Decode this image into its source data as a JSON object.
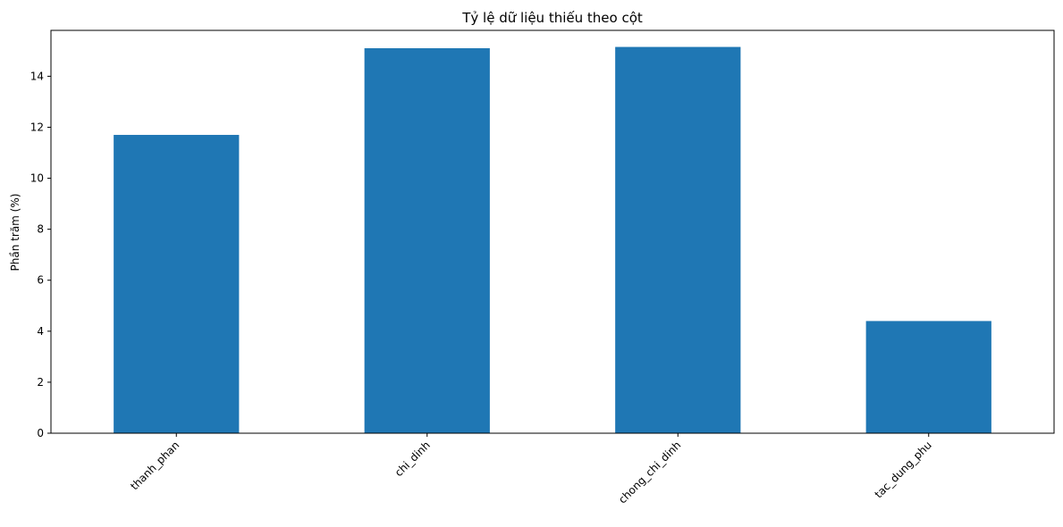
{
  "chart_data": {
    "type": "bar",
    "title": "Tỷ lệ dữ liệu thiếu theo cột",
    "xlabel": "",
    "ylabel": "Phần trăm (%)",
    "categories": [
      "thanh_phan",
      "chi_dinh",
      "chong_chi_dinh",
      "tac_dung_phu"
    ],
    "values": [
      11.7,
      15.1,
      15.15,
      4.4
    ],
    "ylim": [
      0,
      15.8
    ],
    "yticks": [
      0,
      2,
      4,
      6,
      8,
      10,
      12,
      14
    ],
    "ytick_labels": [
      "0",
      "2",
      "4",
      "6",
      "8",
      "10",
      "12",
      "14"
    ],
    "grid": false,
    "legend": "none",
    "xtick_rotation_deg": 45,
    "bar_color": "#1f77b4"
  }
}
